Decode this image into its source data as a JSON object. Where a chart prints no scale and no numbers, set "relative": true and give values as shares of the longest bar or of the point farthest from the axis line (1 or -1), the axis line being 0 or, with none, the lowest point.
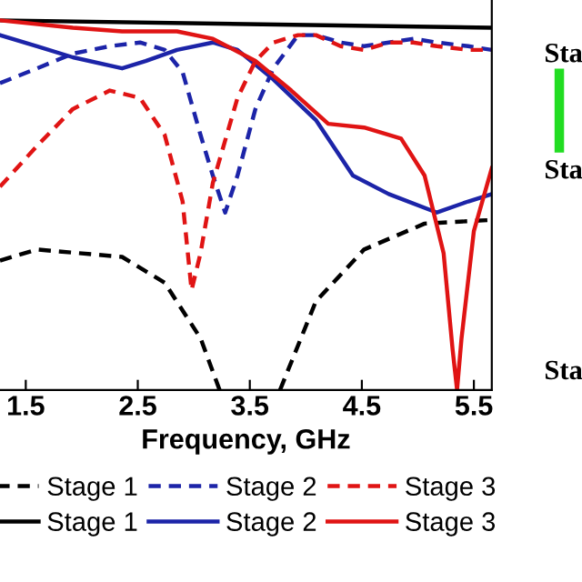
{
  "chart_data": {
    "type": "line",
    "xlabel": "Frequency, GHz",
    "relative": true,
    "xlim": [
      1.27,
      5.66
    ],
    "xticks": [
      1.5,
      2.5,
      3.5,
      4.5,
      5.5
    ],
    "grid": false,
    "legend": "bottom",
    "marker": "none",
    "annotations": [
      "Sta",
      "Sta",
      "Sta"
    ],
    "series": [
      {
        "name": "Stage 1",
        "color": "#000000",
        "line_style": "dashed",
        "x": [
          1.27,
          1.6,
          2.36,
          2.74,
          3.06,
          3.23,
          3.5,
          3.77,
          4.09,
          4.52,
          5.06,
          5.66
        ],
        "values": [
          0.35,
          0.38,
          0.36,
          0.29,
          0.14,
          0.0,
          null,
          0.0,
          0.24,
          0.38,
          0.45,
          0.46
        ]
      },
      {
        "name": "Stage 1",
        "color": "#000000",
        "line_style": "solid",
        "x": [
          1.27,
          5.66
        ],
        "values": [
          1.0,
          0.98
        ]
      },
      {
        "name": "Stage 2",
        "color": "#1c24a8",
        "line_style": "dashed",
        "x": [
          1.27,
          1.6,
          1.92,
          2.25,
          2.52,
          2.74,
          2.9,
          3.06,
          3.17,
          3.28,
          3.39,
          3.55,
          3.71,
          3.93,
          4.09,
          4.31,
          4.52,
          4.74,
          4.96,
          5.17,
          5.45,
          5.66
        ],
        "values": [
          0.83,
          0.87,
          0.91,
          0.93,
          0.94,
          0.92,
          0.86,
          0.69,
          0.58,
          0.48,
          0.58,
          0.76,
          0.87,
          0.96,
          0.96,
          0.94,
          0.93,
          0.94,
          0.95,
          0.94,
          0.93,
          0.92
        ]
      },
      {
        "name": "Stage 2",
        "color": "#1c24a8",
        "line_style": "solid",
        "x": [
          1.27,
          1.6,
          1.92,
          2.36,
          2.57,
          2.85,
          3.17,
          3.39,
          3.71,
          4.09,
          4.42,
          4.74,
          5.17,
          5.45,
          5.66
        ],
        "values": [
          0.96,
          0.93,
          0.9,
          0.87,
          0.89,
          0.92,
          0.94,
          0.92,
          0.84,
          0.73,
          0.58,
          0.53,
          0.48,
          0.51,
          0.53
        ]
      },
      {
        "name": "Stage 3",
        "color": "#e01414",
        "line_style": "dashed",
        "x": [
          1.27,
          1.6,
          1.92,
          2.25,
          2.52,
          2.74,
          2.9,
          2.98,
          3.06,
          3.17,
          3.39,
          3.55,
          3.71,
          3.93,
          4.09,
          4.31,
          4.52,
          4.74,
          4.96,
          5.17,
          5.45,
          5.66
        ],
        "values": [
          0.55,
          0.66,
          0.76,
          0.81,
          0.79,
          0.69,
          0.51,
          0.27,
          0.37,
          0.56,
          0.79,
          0.89,
          0.94,
          0.96,
          0.96,
          0.93,
          0.92,
          0.94,
          0.94,
          0.93,
          0.92,
          0.92
        ]
      },
      {
        "name": "Stage 3",
        "color": "#e01414",
        "line_style": "solid",
        "x": [
          1.27,
          1.92,
          2.36,
          2.85,
          3.17,
          3.55,
          3.87,
          4.2,
          4.52,
          4.85,
          5.06,
          5.23,
          5.31,
          5.35,
          5.39,
          5.5,
          5.66
        ],
        "values": [
          1.0,
          0.98,
          0.97,
          0.97,
          0.95,
          0.89,
          0.81,
          0.72,
          0.71,
          0.68,
          0.58,
          0.37,
          0.11,
          0.0,
          0.14,
          0.43,
          0.6
        ]
      }
    ]
  }
}
